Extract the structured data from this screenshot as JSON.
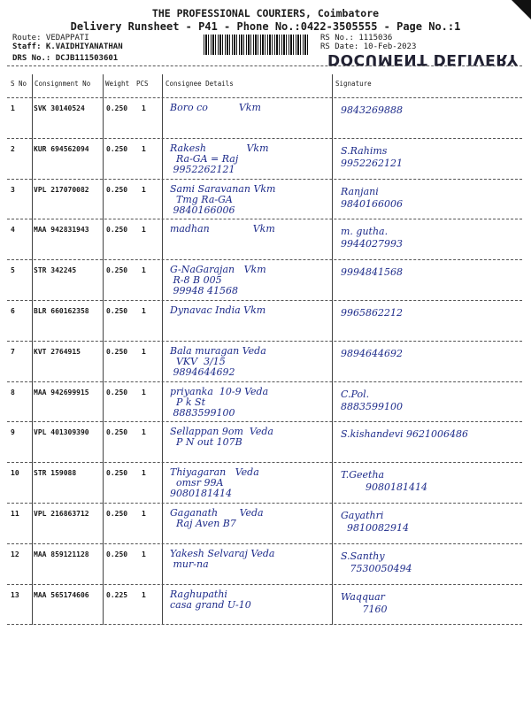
{
  "header": {
    "title": "THE PROFESSIONAL COURIERS, Coimbatore",
    "subtitle": "Delivery Runsheet - P41 - Phone No.:0422-3505555 - Page No.:1",
    "route": "Route: VEDAPPATI",
    "staff": "Staff: K.VAIDHIYANATHAN",
    "drs": "DRS No.: DCJB111503601",
    "rs_no": "RS No.: 1115036",
    "rs_date": "RS Date: 10-Feb-2023",
    "stamp": "DOCUMENT DELIVERY"
  },
  "columns": [
    "S No",
    "Consignment No",
    "Weight",
    "PCS",
    "Consignee Details",
    "Signature"
  ],
  "rows": [
    {
      "sno": "1",
      "consignment": "SVK 30140524",
      "weight": "0.250",
      "pcs": "1",
      "consignee": "Boro co          Vkm",
      "signature": "9843269888"
    },
    {
      "sno": "2",
      "consignment": "KUR 694562094",
      "weight": "0.250",
      "pcs": "1",
      "consignee": "Rakesh             Vkm\n  Ra-GA = Raj\n 9952262121",
      "signature": "S.Rahims\n9952262121"
    },
    {
      "sno": "3",
      "consignment": "VPL 217070082",
      "weight": "0.250",
      "pcs": "1",
      "consignee": "Sami Saravanan Vkm\n  Tmg Ra-GA\n 9840166006",
      "signature": "Ranjani\n9840166006"
    },
    {
      "sno": "4",
      "consignment": "MAA 942831943",
      "weight": "0.250",
      "pcs": "1",
      "consignee": "madhan              Vkm",
      "signature": "m. gutha.\n9944027993"
    },
    {
      "sno": "5",
      "consignment": "STR 342245",
      "weight": "0.250",
      "pcs": "1",
      "consignee": "G-NaGarajan   Vkm\n R-8 B 005\n 99948 41568",
      "signature": "9994841568"
    },
    {
      "sno": "6",
      "consignment": "BLR 660162358",
      "weight": "0.250",
      "pcs": "1",
      "consignee": "Dynavac India Vkm",
      "signature": "9965862212"
    },
    {
      "sno": "7",
      "consignment": "KVT 2764915",
      "weight": "0.250",
      "pcs": "1",
      "consignee": "Bala muragan Veda\n  VKV  3/15\n 9894644692",
      "signature": "9894644692"
    },
    {
      "sno": "8",
      "consignment": "MAA 942699915",
      "weight": "0.250",
      "pcs": "1",
      "consignee": "priyanka  10-9 Veda\n  P k St\n 8883599100",
      "signature": "C.Pol.\n8883599100"
    },
    {
      "sno": "9",
      "consignment": "VPL 401309390",
      "weight": "0.250",
      "pcs": "1",
      "consignee": "Sellappan 9om  Veda\n  P N out 107B",
      "signature": "S.kishandevi 9621006486"
    },
    {
      "sno": "10",
      "consignment": "STR 159088",
      "weight": "0.250",
      "pcs": "1",
      "consignee": "Thiyagaran   Veda\n  omsr 99A\n9080181414",
      "signature": "T.Geetha\n        9080181414"
    },
    {
      "sno": "11",
      "consignment": "VPL 216863712",
      "weight": "0.250",
      "pcs": "1",
      "consignee": "Gaganath       Veda\n  Raj Aven B7",
      "signature": "Gayathri\n  9810082914"
    },
    {
      "sno": "12",
      "consignment": "MAA 859121128",
      "weight": "0.250",
      "pcs": "1",
      "consignee": "Yakesh Selvaraj Veda\n mur-na",
      "signature": "S.Santhy\n   7530050494"
    },
    {
      "sno": "13",
      "consignment": "MAA 565174606",
      "weight": "0.225",
      "pcs": "1",
      "consignee": "Raghupathi\ncasa grand U-10",
      "signature": "Waqquar\n       7160"
    }
  ],
  "colors": {
    "ink": "#1d2b8a",
    "print": "#1a1a1a"
  }
}
